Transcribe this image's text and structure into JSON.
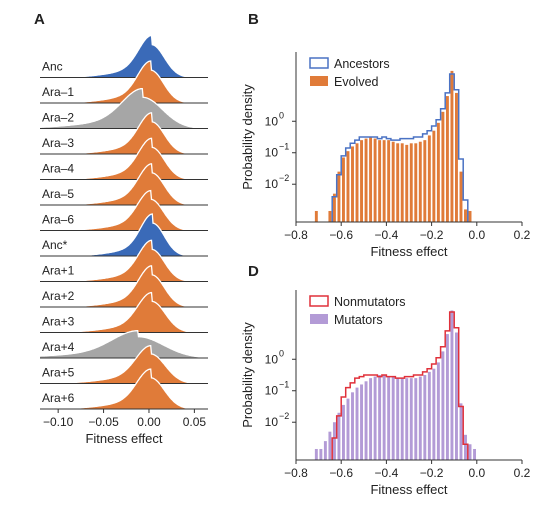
{
  "colors": {
    "orange": "#e07b39",
    "blue": "#3a6ab8",
    "gray": "#a6a6a6",
    "purple": "#b39bd6",
    "ancestors_line": "#4a72c4",
    "nonmutators_line": "#e0303a"
  },
  "chart_data": [
    {
      "panel": "A",
      "type": "area",
      "xlabel": "Fitness effect",
      "xlim": [
        -0.12,
        0.065
      ],
      "xticks": [
        -0.1,
        -0.05,
        0.0,
        0.05
      ],
      "xtick_labels": [
        "−0.10",
        "−0.05",
        "0.00",
        "0.05"
      ],
      "rows": [
        {
          "label": "Anc",
          "color": "blue",
          "mean": 0.003,
          "sd": 0.014,
          "skew": -0.02,
          "height": 1.0
        },
        {
          "label": "Ara–1",
          "color": "orange",
          "mean": 0.002,
          "sd": 0.014,
          "skew": -0.02,
          "height": 1.0
        },
        {
          "label": "Ara–2",
          "color": "gray",
          "mean": -0.007,
          "sd": 0.022,
          "skew": -0.04,
          "height": 0.95
        },
        {
          "label": "Ara–3",
          "color": "orange",
          "mean": 0.003,
          "sd": 0.014,
          "skew": -0.02,
          "height": 0.98
        },
        {
          "label": "Ara–4",
          "color": "orange",
          "mean": 0.003,
          "sd": 0.014,
          "skew": -0.02,
          "height": 0.98
        },
        {
          "label": "Ara–5",
          "color": "orange",
          "mean": 0.003,
          "sd": 0.014,
          "skew": -0.02,
          "height": 0.98
        },
        {
          "label": "Ara–6",
          "color": "orange",
          "mean": 0.002,
          "sd": 0.014,
          "skew": -0.02,
          "height": 0.95
        },
        {
          "label": "Anc*",
          "color": "blue",
          "mean": 0.004,
          "sd": 0.013,
          "skew": -0.02,
          "height": 1.0
        },
        {
          "label": "Ara+1",
          "color": "orange",
          "mean": 0.003,
          "sd": 0.014,
          "skew": -0.02,
          "height": 0.98
        },
        {
          "label": "Ara+2",
          "color": "orange",
          "mean": 0.003,
          "sd": 0.014,
          "skew": -0.02,
          "height": 0.98
        },
        {
          "label": "Ara+3",
          "color": "orange",
          "mean": 0.003,
          "sd": 0.015,
          "skew": -0.02,
          "height": 0.95
        },
        {
          "label": "Ara+4",
          "color": "gray",
          "mean": -0.012,
          "sd": 0.028,
          "skew": -0.03,
          "height": 0.65
        },
        {
          "label": "Ara+5",
          "color": "orange",
          "mean": 0.002,
          "sd": 0.016,
          "skew": -0.02,
          "height": 0.9
        },
        {
          "label": "Ara+6",
          "color": "orange",
          "mean": 0.002,
          "sd": 0.015,
          "skew": -0.02,
          "height": 0.95
        }
      ]
    },
    {
      "panel": "B",
      "type": "bar",
      "xlabel": "Fitness effect",
      "ylabel": "Probability density",
      "xlim": [
        -0.8,
        0.2
      ],
      "ylim_log10": [
        -3.2,
        2.2
      ],
      "xticks": [
        -0.8,
        -0.6,
        -0.4,
        -0.2,
        0.0,
        0.2
      ],
      "xtick_labels": [
        "−0.8",
        "−0.6",
        "−0.4",
        "−0.2",
        "0.0",
        "0.2"
      ],
      "yticks_log10": [
        -2,
        -1,
        0
      ],
      "ytick_labels": [
        "10",
        "10",
        "10"
      ],
      "ytick_exps": [
        "−2",
        "−1",
        "0"
      ],
      "legend": [
        "Ancestors",
        "Evolved"
      ],
      "legend_position": "top-left",
      "bin_width": 0.02,
      "bins_start": -0.72,
      "filled_name": "Evolved",
      "filled_color": "orange",
      "filled_log10": [
        -2.85,
        -99,
        -99,
        -2.85,
        -2.3,
        -1.6,
        -1.15,
        -0.95,
        -0.8,
        -0.7,
        -0.6,
        -0.55,
        -0.5,
        -0.55,
        -0.6,
        -0.6,
        -0.6,
        -0.65,
        -0.7,
        -0.7,
        -0.75,
        -0.7,
        -0.7,
        -0.65,
        -0.6,
        -0.45,
        -0.3,
        -0.05,
        0.3,
        0.8,
        1.6,
        0.9,
        -1.6,
        -2.8,
        -2.85,
        -99
      ],
      "line_name": "Ancestors",
      "line_color": "ancestors_line",
      "line_log10": [
        -99,
        -99,
        -99,
        -99,
        -2.4,
        -1.7,
        -1.1,
        -0.85,
        -0.7,
        -0.6,
        -0.5,
        -0.5,
        -0.5,
        -0.5,
        -0.55,
        -0.5,
        -0.55,
        -0.6,
        -0.6,
        -0.55,
        -0.55,
        -0.55,
        -0.5,
        -0.5,
        -0.4,
        -0.3,
        -0.15,
        0.05,
        0.4,
        0.9,
        1.5,
        1.0,
        -1.2,
        -2.5,
        -99,
        -99
      ]
    },
    {
      "panel": "D",
      "type": "bar",
      "xlabel": "Fitness effect",
      "ylabel": "Probability density",
      "xlim": [
        -0.8,
        0.2
      ],
      "ylim_log10": [
        -3.2,
        2.2
      ],
      "xticks": [
        -0.8,
        -0.6,
        -0.4,
        -0.2,
        0.0,
        0.2
      ],
      "xtick_labels": [
        "−0.8",
        "−0.6",
        "−0.4",
        "−0.2",
        "0.0",
        "0.2"
      ],
      "yticks_log10": [
        -2,
        -1,
        0
      ],
      "ytick_labels": [
        "10",
        "10",
        "10"
      ],
      "ytick_exps": [
        "−2",
        "−1",
        "0"
      ],
      "legend": [
        "Nonmutators",
        "Mutators"
      ],
      "legend_position": "top-left",
      "bin_width": 0.02,
      "bins_start": -0.72,
      "filled_name": "Mutators",
      "filled_color": "purple",
      "filled_log10": [
        -2.85,
        -2.85,
        -2.6,
        -2.3,
        -2.0,
        -1.7,
        -1.45,
        -1.25,
        -1.05,
        -0.9,
        -0.8,
        -0.7,
        -0.6,
        -0.55,
        -0.5,
        -0.5,
        -0.55,
        -0.55,
        -0.6,
        -0.6,
        -0.6,
        -0.6,
        -0.6,
        -0.55,
        -0.5,
        -0.4,
        -0.3,
        -0.1,
        0.25,
        0.8,
        1.55,
        0.85,
        -1.4,
        -2.4,
        -2.7,
        -2.85
      ],
      "line_name": "Nonmutators",
      "line_color": "nonmutators_line",
      "line_log10": [
        -99,
        -99,
        -99,
        -99,
        -2.5,
        -1.8,
        -1.2,
        -0.9,
        -0.75,
        -0.6,
        -0.55,
        -0.5,
        -0.5,
        -0.5,
        -0.55,
        -0.5,
        -0.55,
        -0.55,
        -0.6,
        -0.6,
        -0.55,
        -0.55,
        -0.5,
        -0.5,
        -0.4,
        -0.3,
        -0.15,
        0.05,
        0.4,
        0.9,
        1.5,
        1.0,
        -1.5,
        -2.7,
        -99,
        -99
      ]
    }
  ]
}
